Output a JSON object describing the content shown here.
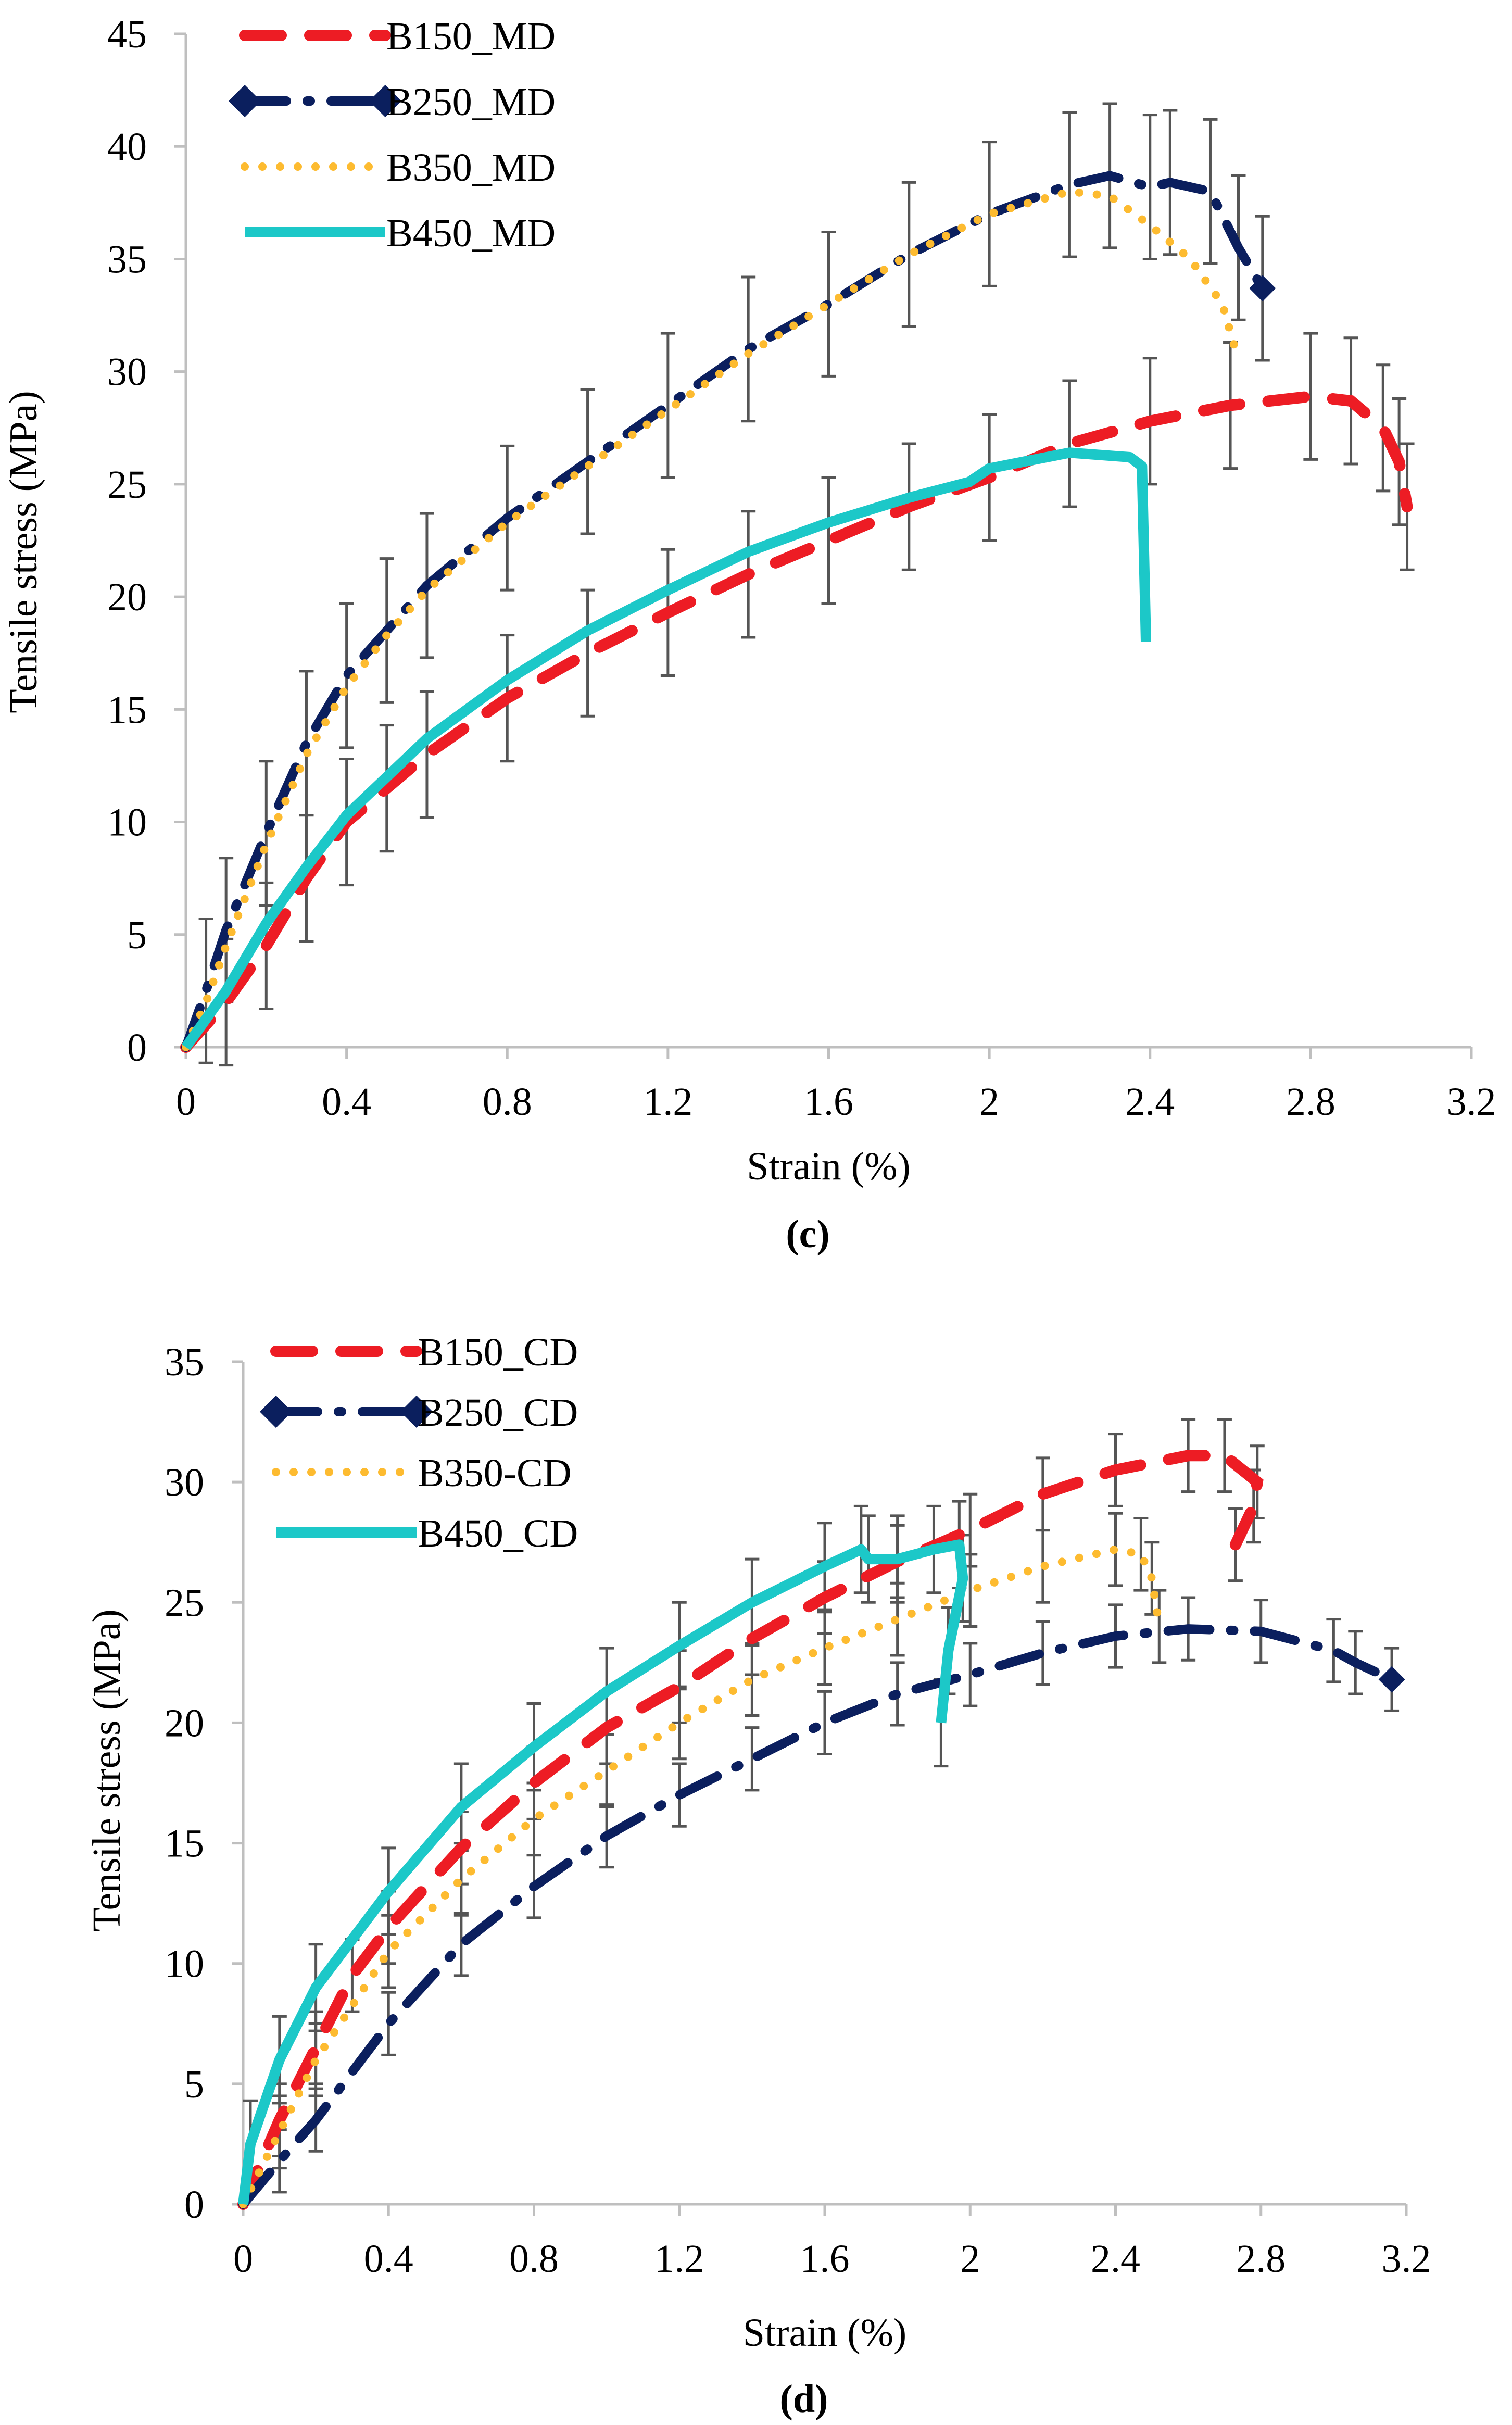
{
  "colors": {
    "B150": "#ED1C24",
    "B250": "#0B1F5E",
    "B350": "#FDBB30",
    "B450": "#1CC8C8",
    "axis": "#BFBFBF",
    "error": "#555555"
  },
  "chart_data": [
    {
      "type": "line",
      "panel_label": "(c)",
      "xlabel": "Strain (%)",
      "ylabel": "Tensile stress (MPa)",
      "xlim": [
        0,
        3.2
      ],
      "ylim": [
        0,
        45
      ],
      "xticks": [
        "0",
        "0.4",
        "0.8",
        "1.2",
        "1.6",
        "2",
        "2.4",
        "2.8",
        "3.2"
      ],
      "yticks": [
        "0",
        "5",
        "10",
        "15",
        "20",
        "25",
        "30",
        "35",
        "40",
        "45"
      ],
      "legend_position": "top-left",
      "grid": false,
      "series": [
        {
          "name": "B150_MD",
          "key": "B150",
          "style": "dash",
          "error": 2.8,
          "points": [
            [
              0,
              0
            ],
            [
              0.1,
              2
            ],
            [
              0.2,
              4.5
            ],
            [
              0.3,
              7.5
            ],
            [
              0.4,
              10
            ],
            [
              0.5,
              11.5
            ],
            [
              0.6,
              13
            ],
            [
              0.8,
              15.5
            ],
            [
              1.0,
              17.5
            ],
            [
              1.2,
              19.3
            ],
            [
              1.4,
              21
            ],
            [
              1.6,
              22.5
            ],
            [
              1.8,
              24
            ],
            [
              2.0,
              25.3
            ],
            [
              2.2,
              26.8
            ],
            [
              2.4,
              27.8
            ],
            [
              2.6,
              28.5
            ],
            [
              2.8,
              28.9
            ],
            [
              2.9,
              28.7
            ],
            [
              2.98,
              27.5
            ],
            [
              3.02,
              26
            ],
            [
              3.04,
              24
            ]
          ]
        },
        {
          "name": "B250_MD",
          "key": "B250",
          "style": "dashdot",
          "error": 3.2,
          "points": [
            [
              0,
              0
            ],
            [
              0.05,
              2.5
            ],
            [
              0.1,
              5.2
            ],
            [
              0.2,
              9.5
            ],
            [
              0.3,
              13.5
            ],
            [
              0.4,
              16.5
            ],
            [
              0.5,
              18.5
            ],
            [
              0.6,
              20.5
            ],
            [
              0.8,
              23.5
            ],
            [
              1.0,
              26
            ],
            [
              1.2,
              28.5
            ],
            [
              1.4,
              31
            ],
            [
              1.6,
              33
            ],
            [
              1.8,
              35.2
            ],
            [
              2.0,
              37
            ],
            [
              2.2,
              38.3
            ],
            [
              2.3,
              38.7
            ],
            [
              2.4,
              38.2
            ],
            [
              2.45,
              38.4
            ],
            [
              2.55,
              38
            ],
            [
              2.62,
              35.5
            ],
            [
              2.68,
              33.7
            ]
          ]
        },
        {
          "name": "B350_MD",
          "key": "B350",
          "style": "dot",
          "error": 0,
          "points": [
            [
              0,
              0
            ],
            [
              0.05,
              2
            ],
            [
              0.1,
              4.5
            ],
            [
              0.2,
              9
            ],
            [
              0.3,
              13
            ],
            [
              0.4,
              16
            ],
            [
              0.5,
              18.3
            ],
            [
              0.6,
              20.3
            ],
            [
              0.8,
              23.3
            ],
            [
              1.0,
              25.8
            ],
            [
              1.2,
              28.3
            ],
            [
              1.4,
              30.8
            ],
            [
              1.6,
              33
            ],
            [
              1.8,
              35.2
            ],
            [
              2.0,
              37
            ],
            [
              2.2,
              38
            ],
            [
              2.3,
              37.8
            ],
            [
              2.4,
              36.5
            ],
            [
              2.5,
              35
            ],
            [
              2.58,
              33
            ],
            [
              2.62,
              30.5
            ]
          ]
        },
        {
          "name": "B450_MD",
          "key": "B450",
          "style": "solid",
          "error": 0,
          "points": [
            [
              0,
              0
            ],
            [
              0.1,
              2.5
            ],
            [
              0.2,
              5.5
            ],
            [
              0.3,
              8
            ],
            [
              0.4,
              10.3
            ],
            [
              0.5,
              12
            ],
            [
              0.6,
              13.7
            ],
            [
              0.8,
              16.3
            ],
            [
              1.0,
              18.5
            ],
            [
              1.2,
              20.3
            ],
            [
              1.4,
              22
            ],
            [
              1.6,
              23.3
            ],
            [
              1.8,
              24.4
            ],
            [
              1.95,
              25.1
            ],
            [
              2.0,
              25.7
            ],
            [
              2.2,
              26.4
            ],
            [
              2.35,
              26.2
            ],
            [
              2.38,
              25.8
            ],
            [
              2.39,
              18
            ]
          ]
        }
      ]
    },
    {
      "type": "line",
      "panel_label": "(d)",
      "xlabel": "Strain (%)",
      "ylabel": "Tensile stress (MPa)",
      "xlim": [
        0,
        3.2
      ],
      "ylim": [
        0,
        35
      ],
      "xticks": [
        "0",
        "0.4",
        "0.8",
        "1.2",
        "1.6",
        "2",
        "2.4",
        "2.8",
        "3.2"
      ],
      "yticks": [
        "0",
        "5",
        "10",
        "15",
        "20",
        "25",
        "30",
        "35"
      ],
      "legend_position": "top-left",
      "grid": false,
      "series": [
        {
          "name": "B150_CD",
          "key": "B150",
          "style": "dash",
          "error": 1.5,
          "points": [
            [
              0,
              0
            ],
            [
              0.1,
              3.5
            ],
            [
              0.2,
              6.5
            ],
            [
              0.3,
              9.5
            ],
            [
              0.4,
              11.5
            ],
            [
              0.6,
              14.8
            ],
            [
              0.8,
              17.5
            ],
            [
              1.0,
              19.8
            ],
            [
              1.2,
              21.5
            ],
            [
              1.4,
              23.5
            ],
            [
              1.6,
              25.2
            ],
            [
              1.8,
              26.7
            ],
            [
              2.0,
              28
            ],
            [
              2.2,
              29.5
            ],
            [
              2.4,
              30.5
            ],
            [
              2.6,
              31.1
            ],
            [
              2.7,
              31.1
            ],
            [
              2.79,
              30
            ],
            [
              2.78,
              29
            ],
            [
              2.73,
              27.4
            ]
          ]
        },
        {
          "name": "B250_CD",
          "key": "B250",
          "style": "dashdot",
          "error": 1.3,
          "points": [
            [
              0,
              0
            ],
            [
              0.1,
              1.8
            ],
            [
              0.2,
              3.5
            ],
            [
              0.4,
              7.5
            ],
            [
              0.6,
              10.8
            ],
            [
              0.8,
              13.2
            ],
            [
              1.0,
              15.3
            ],
            [
              1.2,
              17
            ],
            [
              1.4,
              18.5
            ],
            [
              1.6,
              20
            ],
            [
              1.8,
              21.2
            ],
            [
              2.0,
              22
            ],
            [
              2.2,
              22.9
            ],
            [
              2.4,
              23.6
            ],
            [
              2.6,
              23.9
            ],
            [
              2.8,
              23.8
            ],
            [
              3.0,
              23
            ],
            [
              3.06,
              22.5
            ],
            [
              3.16,
              21.8
            ]
          ]
        },
        {
          "name": "B350-CD",
          "key": "B350",
          "style": "dot",
          "error": 1.5,
          "points": [
            [
              0,
              0
            ],
            [
              0.1,
              3
            ],
            [
              0.2,
              6
            ],
            [
              0.4,
              10.5
            ],
            [
              0.6,
              13.5
            ],
            [
              0.8,
              16
            ],
            [
              1.0,
              18
            ],
            [
              1.2,
              20
            ],
            [
              1.4,
              21.8
            ],
            [
              1.6,
              23.1
            ],
            [
              1.8,
              24.3
            ],
            [
              2.0,
              25.5
            ],
            [
              2.2,
              26.5
            ],
            [
              2.4,
              27.2
            ],
            [
              2.47,
              27
            ],
            [
              2.5,
              26
            ],
            [
              2.52,
              24
            ]
          ]
        },
        {
          "name": "B450_CD",
          "key": "B450",
          "style": "solid",
          "error": 1.8,
          "points": [
            [
              0,
              0
            ],
            [
              0.02,
              2.5
            ],
            [
              0.1,
              6
            ],
            [
              0.2,
              9
            ],
            [
              0.4,
              13
            ],
            [
              0.6,
              16.5
            ],
            [
              0.8,
              19
            ],
            [
              1.0,
              21.3
            ],
            [
              1.2,
              23.2
            ],
            [
              1.4,
              25
            ],
            [
              1.6,
              26.5
            ],
            [
              1.7,
              27.2
            ],
            [
              1.72,
              26.8
            ],
            [
              1.8,
              26.8
            ],
            [
              1.9,
              27.2
            ],
            [
              1.97,
              27.4
            ],
            [
              1.98,
              26
            ],
            [
              1.94,
              23
            ],
            [
              1.92,
              20
            ]
          ]
        }
      ]
    }
  ]
}
